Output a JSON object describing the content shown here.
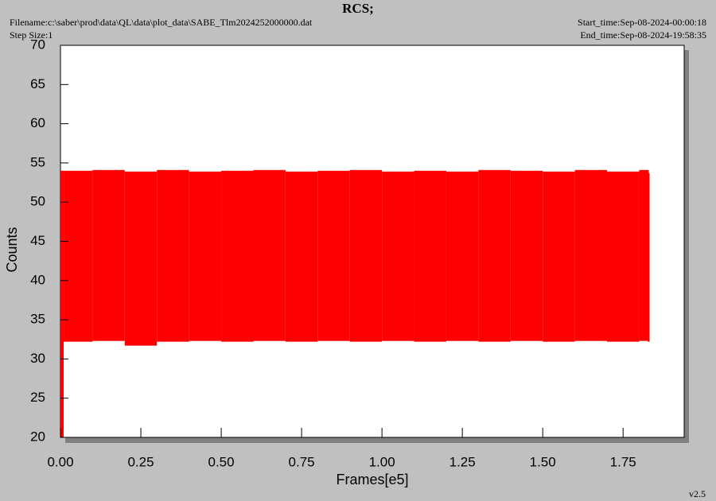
{
  "header": {
    "title": "RCS;",
    "filename": "Filename:c:\\saber\\prod\\data\\QL\\data\\plot_data\\SABE_Tlm2024252000000.dat",
    "step_size": "Step Size:1",
    "start_time": "Start_time:Sep-08-2024-00:00:18",
    "end_time": "End_time:Sep-08-2024-19:58:35",
    "version": "v2.5"
  },
  "chart_data": {
    "type": "range",
    "x_label": "Frames[e5]",
    "y_label": "Counts",
    "color": "#ff0000",
    "x": [
      0,
      0.01,
      0.1,
      0.2,
      0.3,
      0.4,
      0.5,
      0.6,
      0.7,
      0.8,
      0.9,
      1.0,
      1.1,
      1.2,
      1.3,
      1.4,
      1.5,
      1.6,
      1.7,
      1.8,
      1.83
    ],
    "high": [
      54.0,
      54.0,
      54.1,
      53.9,
      54.1,
      53.9,
      54.0,
      54.1,
      53.9,
      54.0,
      54.1,
      53.9,
      54.0,
      53.9,
      54.1,
      54.0,
      53.9,
      54.1,
      53.9,
      54.1,
      53.7
    ],
    "low": [
      20,
      32.2,
      32.3,
      31.7,
      32.2,
      32.3,
      32.2,
      32.3,
      32.2,
      32.3,
      32.2,
      32.3,
      32.2,
      32.3,
      32.2,
      32.3,
      32.2,
      32.3,
      32.2,
      32.3,
      32.2
    ],
    "xlim": [
      0,
      1.94
    ],
    "ylim": [
      20,
      70
    ],
    "xticks": [
      {
        "value": 0,
        "label": "0.00"
      },
      {
        "value": 0.25,
        "label": "0.25"
      },
      {
        "value": 0.5,
        "label": "0.50"
      },
      {
        "value": 0.75,
        "label": "0.75"
      },
      {
        "value": 1.0,
        "label": "1.00"
      },
      {
        "value": 1.25,
        "label": "1.25"
      },
      {
        "value": 1.5,
        "label": "1.50"
      },
      {
        "value": 1.75,
        "label": "1.75"
      }
    ],
    "yticks": [
      20,
      25,
      30,
      35,
      40,
      45,
      50,
      55,
      60,
      65,
      70
    ]
  }
}
